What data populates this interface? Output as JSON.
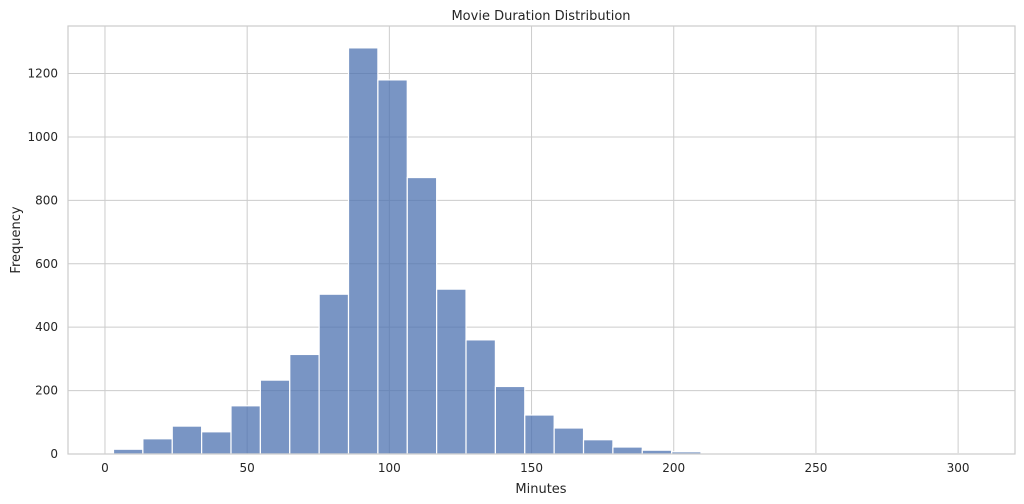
{
  "chart_data": {
    "type": "bar",
    "title": "Movie Duration Distribution",
    "xlabel": "Minutes",
    "ylabel": "Frequency",
    "xlim": [
      -13,
      320
    ],
    "ylim": [
      0,
      1350
    ],
    "xticks": [
      0,
      50,
      100,
      150,
      200,
      250,
      300
    ],
    "yticks": [
      0,
      200,
      400,
      600,
      800,
      1000,
      1200
    ],
    "bin_width": 10.33,
    "bins": [
      {
        "x0": 3,
        "value": 15
      },
      {
        "x0": 13.33,
        "value": 48
      },
      {
        "x0": 23.66,
        "value": 88
      },
      {
        "x0": 33.99,
        "value": 70
      },
      {
        "x0": 44.32,
        "value": 152
      },
      {
        "x0": 54.65,
        "value": 233
      },
      {
        "x0": 64.98,
        "value": 314
      },
      {
        "x0": 75.31,
        "value": 504
      },
      {
        "x0": 85.64,
        "value": 1281
      },
      {
        "x0": 95.97,
        "value": 1180
      },
      {
        "x0": 106.3,
        "value": 872
      },
      {
        "x0": 116.63,
        "value": 520
      },
      {
        "x0": 126.96,
        "value": 360
      },
      {
        "x0": 137.29,
        "value": 213
      },
      {
        "x0": 147.62,
        "value": 123
      },
      {
        "x0": 157.95,
        "value": 82
      },
      {
        "x0": 168.28,
        "value": 45
      },
      {
        "x0": 178.61,
        "value": 22
      },
      {
        "x0": 188.94,
        "value": 12
      },
      {
        "x0": 199.27,
        "value": 7
      },
      {
        "x0": 209.6,
        "value": 3
      },
      {
        "x0": 219.93,
        "value": 2
      },
      {
        "x0": 230.26,
        "value": 1
      },
      {
        "x0": 240.59,
        "value": 1
      },
      {
        "x0": 250.92,
        "value": 0
      },
      {
        "x0": 261.25,
        "value": 1
      },
      {
        "x0": 271.58,
        "value": 0
      },
      {
        "x0": 281.91,
        "value": 0
      },
      {
        "x0": 292.24,
        "value": 1
      },
      {
        "x0": 302.57,
        "value": 1
      }
    ],
    "bar_color": "#4c72b0",
    "grid": true,
    "legend": "none"
  }
}
